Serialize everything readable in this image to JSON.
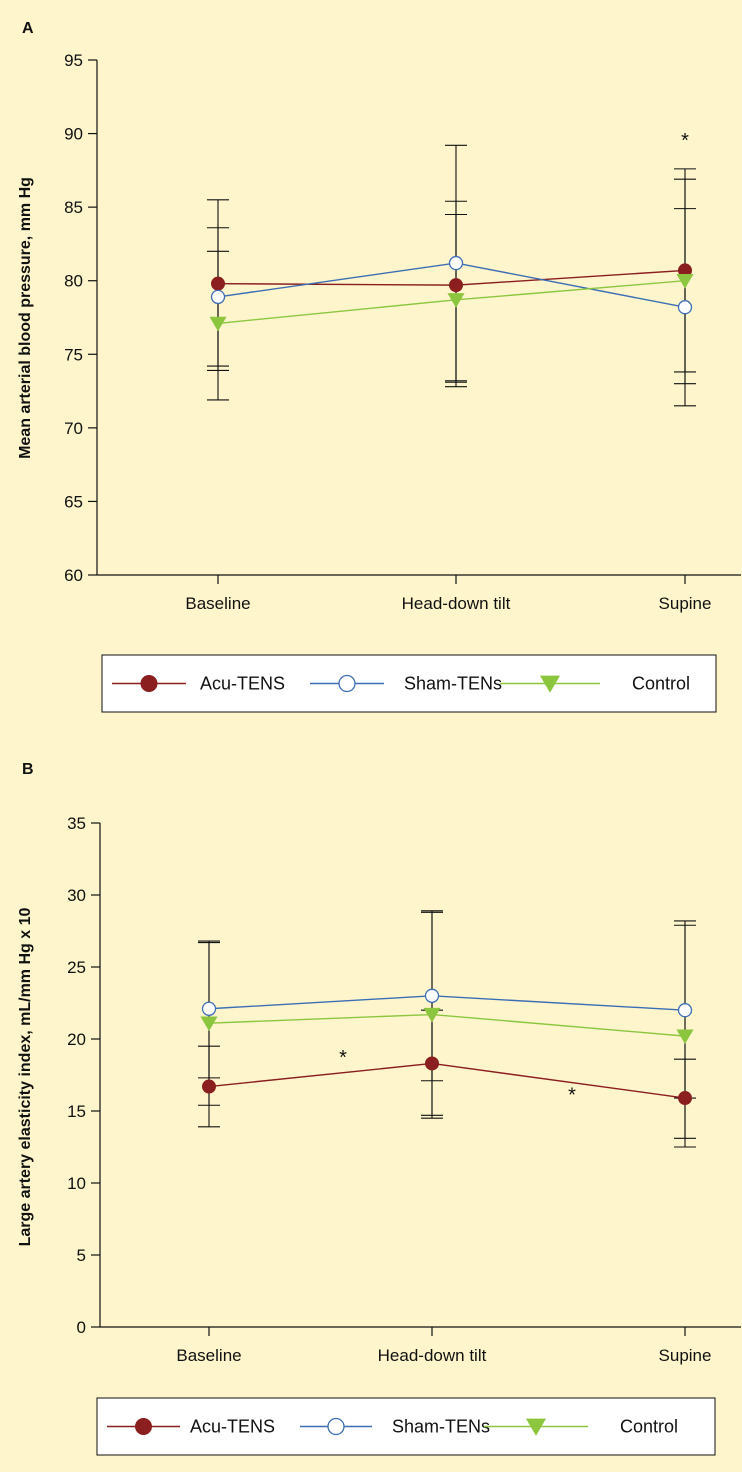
{
  "colors": {
    "background": "#fef5cc",
    "axis": "#111111",
    "acu_tens": "#8b1e1e",
    "sham_tens": "#3d6eb5",
    "control": "#8cc63f",
    "legend_bg": "#ffffff"
  },
  "legend": [
    {
      "label": "Acu-TENS",
      "marker": "filled-circle",
      "color": "#8b1e1e"
    },
    {
      "label": "Sham-TENs",
      "marker": "open-circle",
      "color": "#3d6eb5"
    },
    {
      "label": "Control",
      "marker": "down-triangle",
      "color": "#8cc63f"
    }
  ],
  "chart_data": [
    {
      "panel": "A",
      "type": "line",
      "categories": [
        "Baseline",
        "Head-down tilt",
        "Supine"
      ],
      "ylabel": "Mean arterial blood pressure, mm Hg",
      "xlabel": "",
      "ylim": [
        60,
        95
      ],
      "yticks": [
        60,
        65,
        70,
        75,
        80,
        85,
        90,
        95
      ],
      "series": [
        {
          "name": "Acu-TENS",
          "values": [
            79.8,
            79.7,
            80.7
          ],
          "error_bars": [
            [
              74.2,
              85.5
            ],
            [
              73.1,
              89.2
            ],
            [
              73.8,
              87.6
            ]
          ]
        },
        {
          "name": "Sham-TENs",
          "values": [
            78.9,
            81.2,
            78.2
          ],
          "error_bars": [
            [
              73.9,
              83.6
            ],
            [
              73.2,
              85.4
            ],
            [
              73.0,
              86.9
            ]
          ]
        },
        {
          "name": "Control",
          "values": [
            77.1,
            78.7,
            80.0
          ],
          "error_bars": [
            [
              71.9,
              82.0
            ],
            [
              72.8,
              84.5
            ],
            [
              71.5,
              84.9
            ]
          ]
        }
      ],
      "annotations": [
        {
          "text": "*",
          "category": "Supine",
          "y": 89.9
        }
      ]
    },
    {
      "panel": "B",
      "type": "line",
      "categories": [
        "Baseline",
        "Head-down tilt",
        "Supine"
      ],
      "ylabel": "Large artery elasticity index, mL/mm Hg x 10",
      "xlabel": "",
      "ylim": [
        0,
        35
      ],
      "yticks": [
        0,
        5,
        10,
        15,
        20,
        25,
        30,
        35
      ],
      "series": [
        {
          "name": "Acu-TENS",
          "values": [
            16.7,
            18.3,
            15.9
          ],
          "error_bars": [
            [
              13.9,
              19.5
            ],
            [
              14.5,
              22.0
            ],
            [
              12.5,
              18.6
            ]
          ]
        },
        {
          "name": "Sham-TENs",
          "values": [
            22.1,
            23.0,
            22.0
          ],
          "error_bars": [
            [
              17.3,
              26.8
            ],
            [
              17.1,
              28.9
            ],
            [
              15.9,
              28.2
            ]
          ]
        },
        {
          "name": "Control",
          "values": [
            21.1,
            21.7,
            20.2
          ],
          "error_bars": [
            [
              15.4,
              26.7
            ],
            [
              14.7,
              28.8
            ],
            [
              13.1,
              27.9
            ]
          ]
        }
      ],
      "annotations": [
        {
          "text": "*",
          "category": "between-Baseline-Head-down tilt",
          "y": 19.1
        },
        {
          "text": "*",
          "category": "between-Head-down tilt-Supine",
          "y": 16.5
        }
      ]
    }
  ]
}
